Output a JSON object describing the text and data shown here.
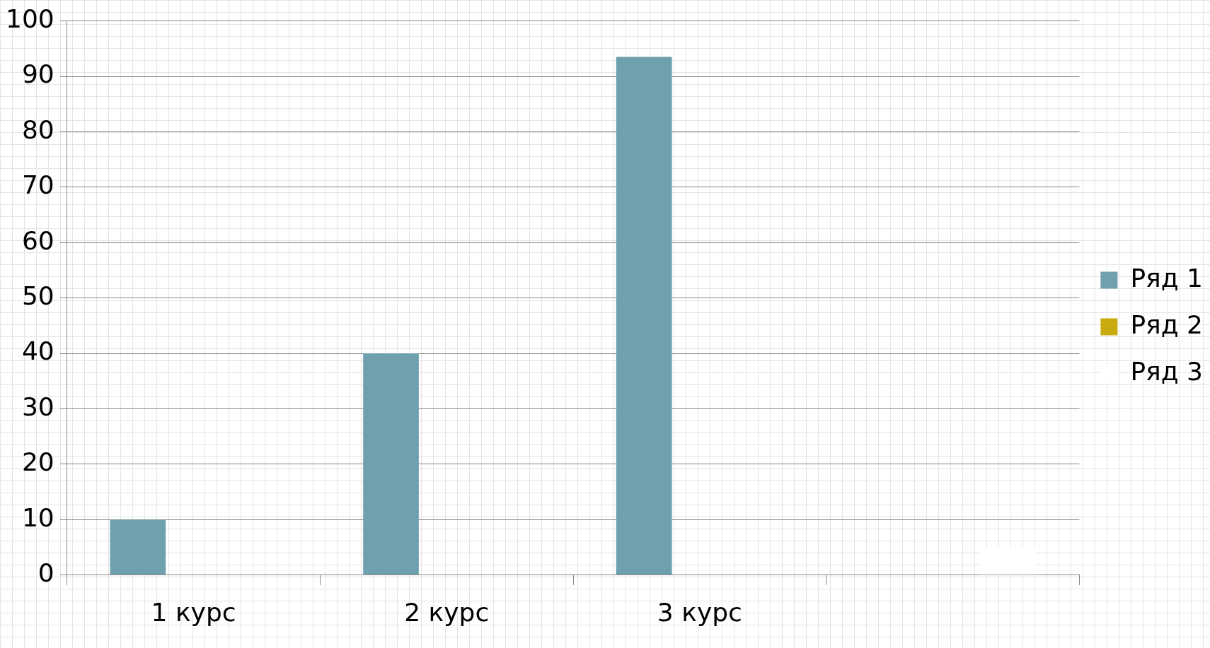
{
  "chart_data": {
    "type": "bar",
    "categories": [
      "1 курс",
      "2 курс",
      "3 курс",
      null
    ],
    "series": [
      {
        "name": "Ряд 1",
        "color": "#6fa0ad",
        "values": [
          10,
          40,
          93.5,
          null
        ]
      },
      {
        "name": "Ряд 2",
        "color": "#c8aa10",
        "values": [
          null,
          null,
          null,
          null
        ]
      },
      {
        "name": "Ряд 3",
        "color": "#ffffff",
        "values": [
          null,
          null,
          null,
          5
        ]
      }
    ],
    "ylim": [
      0,
      100
    ],
    "yticks": [
      0,
      10,
      20,
      30,
      40,
      50,
      60,
      70,
      80,
      90,
      100
    ],
    "grid": "y",
    "legend": "right"
  }
}
